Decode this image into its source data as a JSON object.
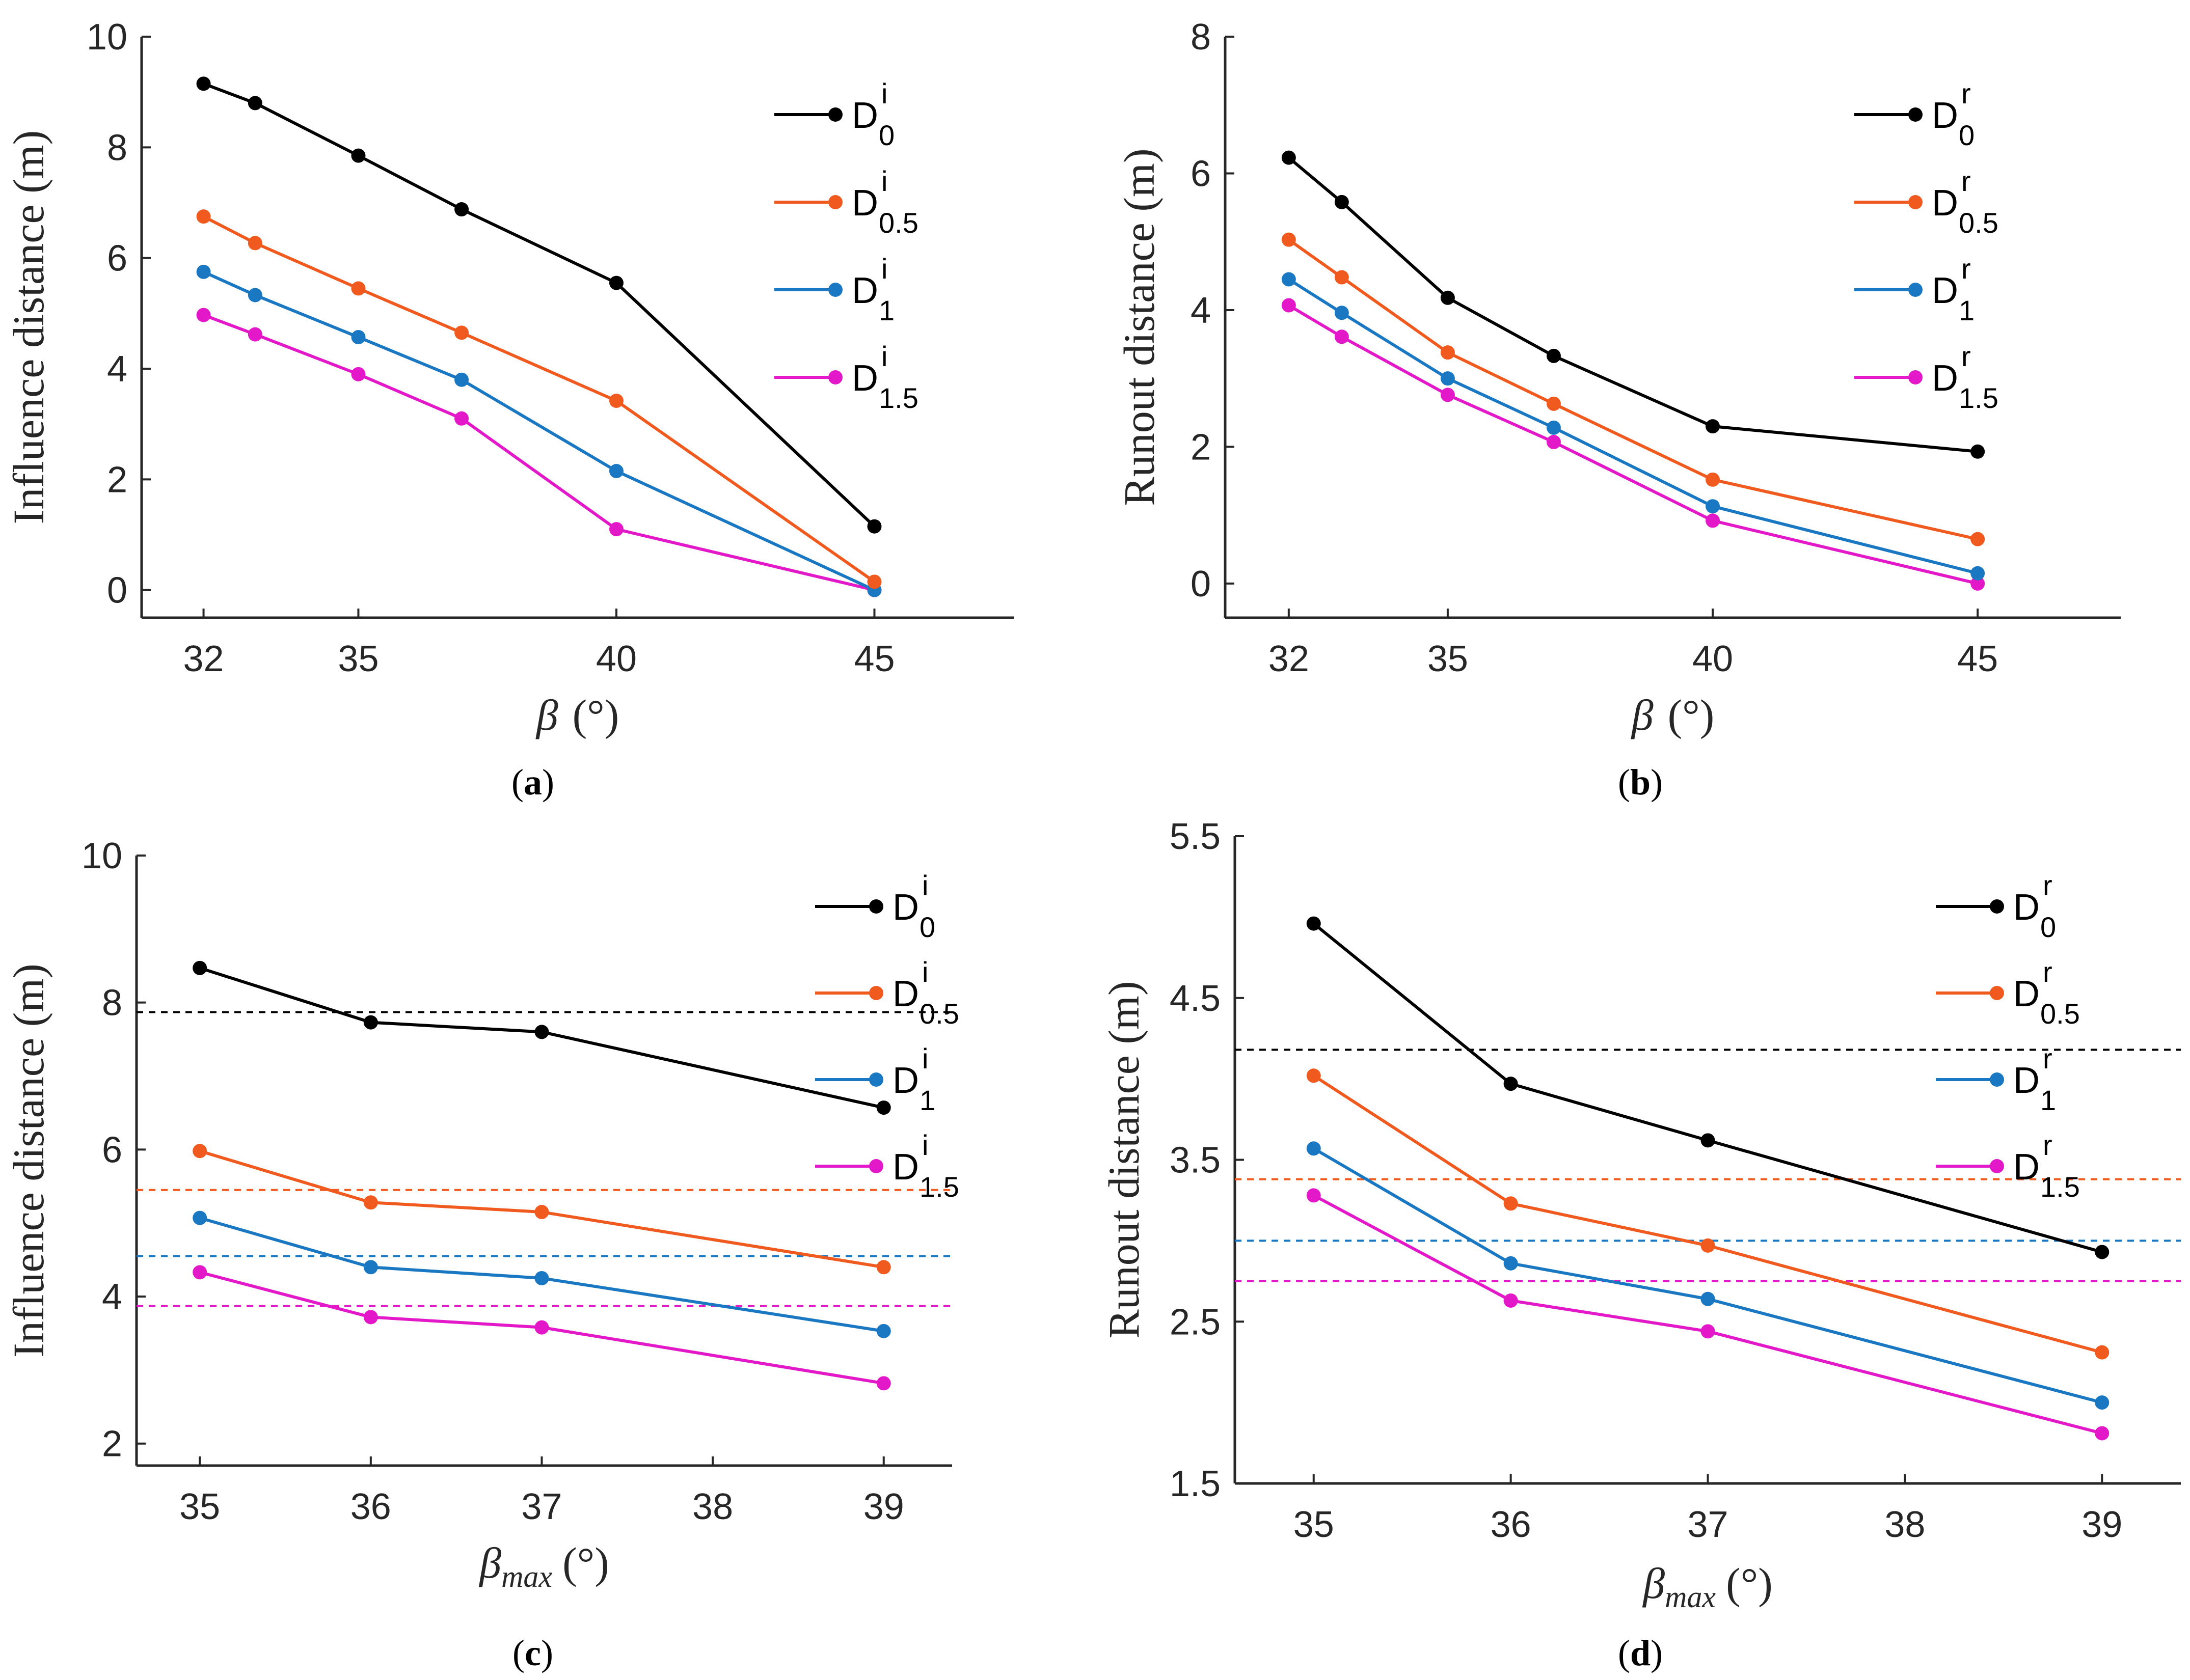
{
  "colors": {
    "D0": "#000000",
    "D0.5": "#f05a1e",
    "D1": "#1a78c2",
    "D1.5": "#e318c8",
    "axis": "#262626"
  },
  "chart_data": [
    {
      "id": "a",
      "type": "line",
      "panel_label": "(a)",
      "xlabel": {
        "symbol": "β",
        "subscript": "",
        "unit": "(°)"
      },
      "ylabel": "Influence distance (m)",
      "xlim": [
        30.8,
        47.7
      ],
      "ylim": [
        -0.5,
        10
      ],
      "xticks": [
        32,
        35,
        40,
        45
      ],
      "yticks": [
        0,
        2,
        4,
        6,
        8,
        10
      ],
      "x": [
        32,
        33,
        35,
        37,
        40,
        45
      ],
      "series": [
        {
          "key": "D0",
          "base": "D",
          "sup": "i",
          "sub": "0",
          "values": [
            9.15,
            8.8,
            7.85,
            6.88,
            5.55,
            1.15
          ]
        },
        {
          "key": "D0.5",
          "base": "D",
          "sup": "i",
          "sub": "0.5",
          "values": [
            6.75,
            6.27,
            5.45,
            4.65,
            3.42,
            0.15
          ]
        },
        {
          "key": "D1",
          "base": "D",
          "sup": "i",
          "sub": "1",
          "values": [
            5.75,
            5.33,
            4.57,
            3.8,
            2.15,
            0.0
          ]
        },
        {
          "key": "D1.5",
          "base": "D",
          "sup": "i",
          "sub": "1.5",
          "values": [
            4.97,
            4.62,
            3.9,
            3.1,
            1.1,
            0.0
          ]
        }
      ],
      "reference_lines": []
    },
    {
      "id": "b",
      "type": "line",
      "panel_label": "(b)",
      "xlabel": {
        "symbol": "β",
        "subscript": "",
        "unit": "(°)"
      },
      "ylabel": "Runout distance (m)",
      "xlim": [
        30.8,
        47.7
      ],
      "ylim": [
        -0.5,
        8
      ],
      "xticks": [
        32,
        35,
        40,
        45
      ],
      "yticks": [
        0,
        2,
        4,
        6,
        8
      ],
      "x": [
        32,
        33,
        35,
        37,
        40,
        45
      ],
      "series": [
        {
          "key": "D0",
          "base": "D",
          "sup": "r",
          "sub": "0",
          "values": [
            6.23,
            5.58,
            4.18,
            3.33,
            2.3,
            1.93
          ]
        },
        {
          "key": "D0.5",
          "base": "D",
          "sup": "r",
          "sub": "0.5",
          "values": [
            5.03,
            4.48,
            3.38,
            2.63,
            1.52,
            0.65
          ]
        },
        {
          "key": "D1",
          "base": "D",
          "sup": "r",
          "sub": "1",
          "values": [
            4.45,
            3.96,
            3.0,
            2.28,
            1.13,
            0.15
          ]
        },
        {
          "key": "D1.5",
          "base": "D",
          "sup": "r",
          "sub": "1.5",
          "values": [
            4.07,
            3.61,
            2.76,
            2.07,
            0.92,
            0.0
          ]
        }
      ],
      "reference_lines": []
    },
    {
      "id": "c",
      "type": "line",
      "panel_label": "(c)",
      "xlabel": {
        "symbol": "β",
        "subscript": "max",
        "unit": "(°)"
      },
      "ylabel": "Influence distance (m)",
      "xlim": [
        34.63,
        39.4
      ],
      "ylim": [
        1.7,
        10
      ],
      "xticks": [
        35,
        36,
        37,
        38,
        39
      ],
      "yticks": [
        2,
        4,
        6,
        8,
        10
      ],
      "x": [
        35,
        36,
        37,
        39
      ],
      "series": [
        {
          "key": "D0",
          "base": "D",
          "sup": "i",
          "sub": "0",
          "values": [
            8.47,
            7.73,
            7.6,
            6.57
          ]
        },
        {
          "key": "D0.5",
          "base": "D",
          "sup": "i",
          "sub": "0.5",
          "values": [
            5.98,
            5.28,
            5.15,
            4.4
          ]
        },
        {
          "key": "D1",
          "base": "D",
          "sup": "i",
          "sub": "1",
          "values": [
            5.07,
            4.4,
            4.25,
            3.53
          ]
        },
        {
          "key": "D1.5",
          "base": "D",
          "sup": "i",
          "sub": "1.5",
          "values": [
            4.33,
            3.72,
            3.58,
            2.82
          ]
        }
      ],
      "reference_lines": [
        {
          "key": "D0",
          "y": 7.87
        },
        {
          "key": "D0.5",
          "y": 5.45
        },
        {
          "key": "D1",
          "y": 4.55
        },
        {
          "key": "D1.5",
          "y": 3.87
        }
      ]
    },
    {
      "id": "d",
      "type": "line",
      "panel_label": "(d)",
      "xlabel": {
        "symbol": "β",
        "subscript": "max",
        "unit": "(°)"
      },
      "ylabel": "Runout distance (m)",
      "xlim": [
        34.6,
        39.4
      ],
      "ylim": [
        1.5,
        5.5
      ],
      "xticks": [
        35,
        36,
        37,
        38,
        39
      ],
      "yticks": [
        1.5,
        2.5,
        3.5,
        4.5,
        5.5
      ],
      "x": [
        35,
        36,
        37,
        39
      ],
      "series": [
        {
          "key": "D0",
          "base": "D",
          "sup": "r",
          "sub": "0",
          "values": [
            4.96,
            3.97,
            3.62,
            2.93
          ]
        },
        {
          "key": "D0.5",
          "base": "D",
          "sup": "r",
          "sub": "0.5",
          "values": [
            4.02,
            3.23,
            2.97,
            2.31
          ]
        },
        {
          "key": "D1",
          "base": "D",
          "sup": "r",
          "sub": "1",
          "values": [
            3.57,
            2.86,
            2.64,
            2.0
          ]
        },
        {
          "key": "D1.5",
          "base": "D",
          "sup": "r",
          "sub": "1.5",
          "values": [
            3.28,
            2.63,
            2.44,
            1.81
          ]
        }
      ],
      "reference_lines": [
        {
          "key": "D0",
          "y": 4.18
        },
        {
          "key": "D0.5",
          "y": 3.38
        },
        {
          "key": "D1",
          "y": 3.0
        },
        {
          "key": "D1.5",
          "y": 2.75
        }
      ]
    }
  ]
}
